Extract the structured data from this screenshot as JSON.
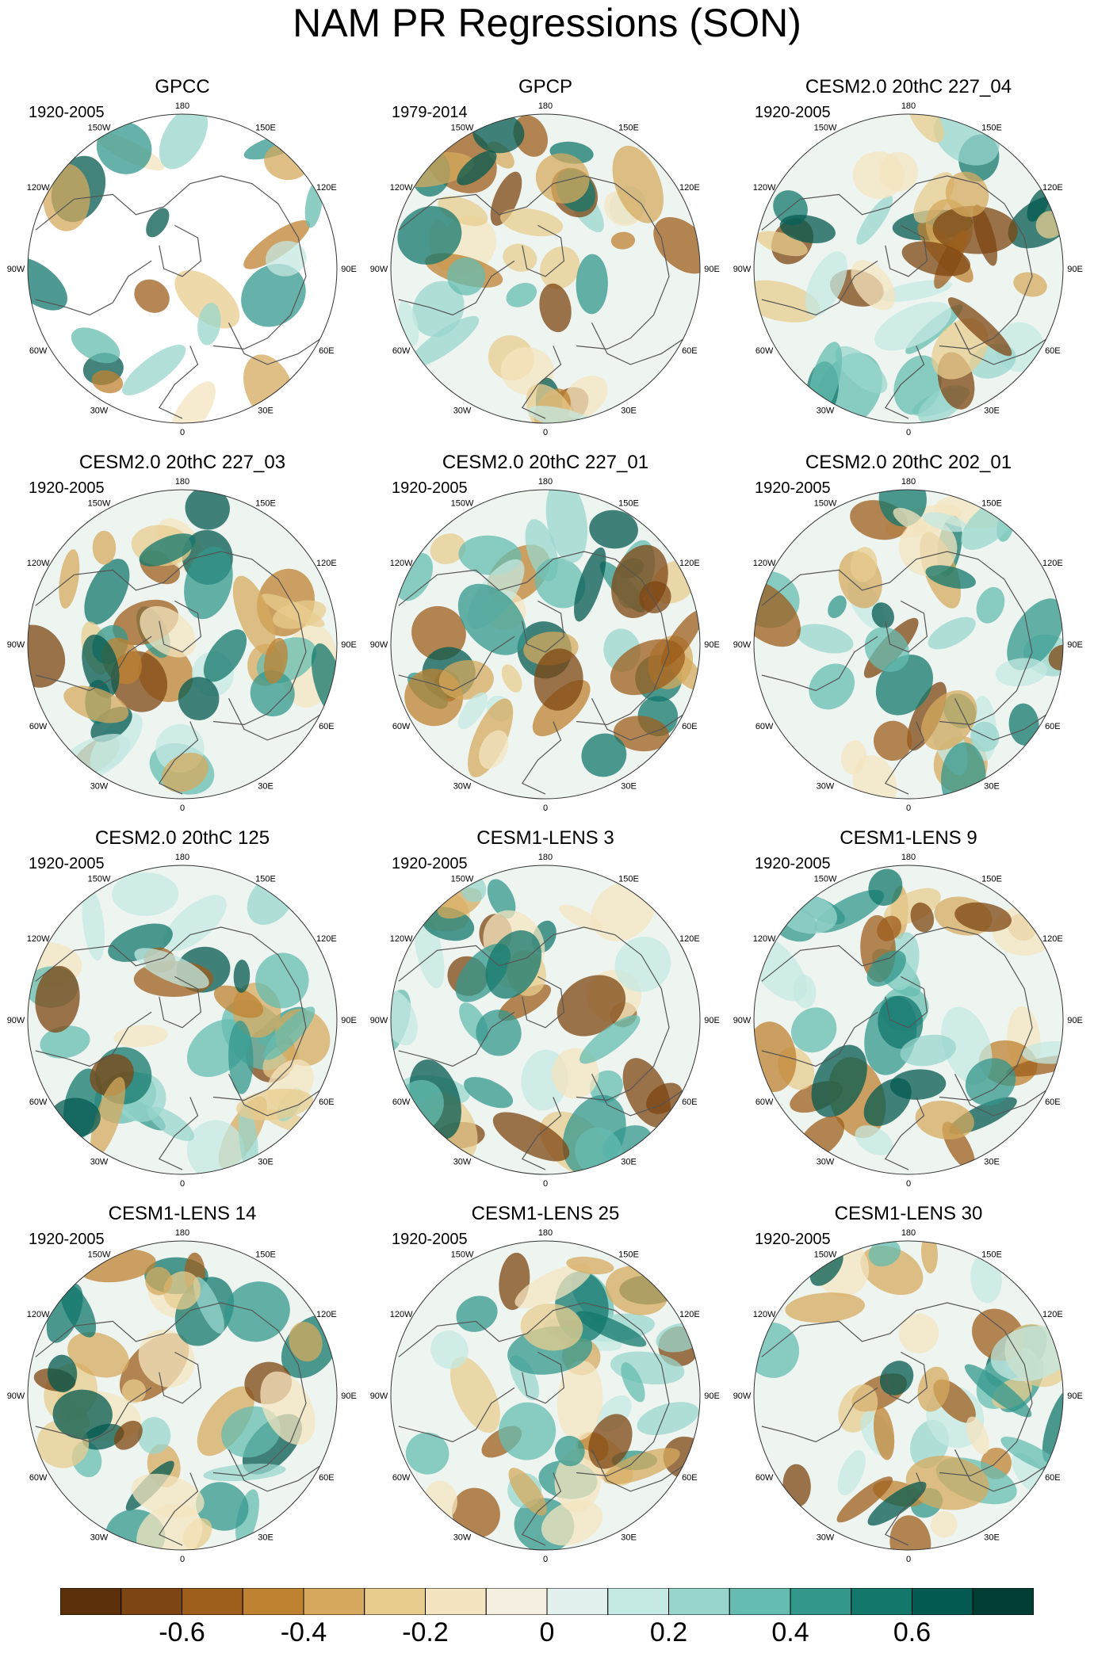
{
  "title": "NAM PR Regressions (SON)",
  "lon_labels": [
    "180",
    "150E",
    "120E",
    "90E",
    "60E",
    "30E",
    "0",
    "30W",
    "60W",
    "90W",
    "120W",
    "150W"
  ],
  "panels": [
    {
      "title": "GPCC",
      "period": "1920-2005",
      "seed": 3,
      "land_only": true
    },
    {
      "title": "GPCP",
      "period": "1979-2014",
      "seed": 7
    },
    {
      "title": "CESM2.0 20thC 227_04",
      "period": "1920-2005",
      "seed": 11
    },
    {
      "title": "CESM2.0 20thC 227_03",
      "period": "1920-2005",
      "seed": 13
    },
    {
      "title": "CESM2.0 20thC 227_01",
      "period": "1920-2005",
      "seed": 17
    },
    {
      "title": "CESM2.0 20thC 202_01",
      "period": "1920-2005",
      "seed": 19
    },
    {
      "title": "CESM2.0 20thC 125",
      "period": "1920-2005",
      "seed": 23
    },
    {
      "title": "CESM1-LENS 3",
      "period": "1920-2005",
      "seed": 29
    },
    {
      "title": "CESM1-LENS 9",
      "period": "1920-2005",
      "seed": 31
    },
    {
      "title": "CESM1-LENS 14",
      "period": "1920-2005",
      "seed": 37
    },
    {
      "title": "CESM1-LENS 25",
      "period": "1920-2005",
      "seed": 41
    },
    {
      "title": "CESM1-LENS 30",
      "period": "1920-2005",
      "seed": 43
    }
  ],
  "colorbar": {
    "colors": [
      "#5a2f0a",
      "#7d4511",
      "#9e5e1c",
      "#bf8230",
      "#d6a95e",
      "#e8cc8e",
      "#f4e4bf",
      "#f5f0e2",
      "#e2f0ee",
      "#c4e8e2",
      "#98d6cc",
      "#66bcb0",
      "#33978c",
      "#13776c",
      "#045a50",
      "#013d33"
    ],
    "tick_labels": [
      "-0.6",
      "-0.4",
      "-0.2",
      "0",
      "0.2",
      "0.4",
      "0.6"
    ]
  }
}
